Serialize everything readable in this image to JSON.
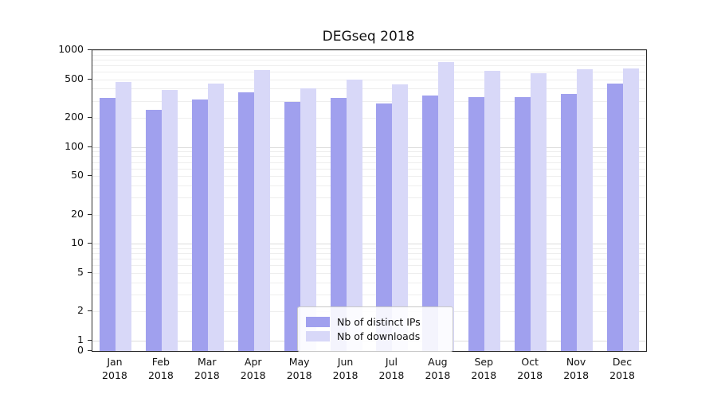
{
  "title": "DEGseq 2018",
  "chart_data": {
    "type": "bar",
    "scale": "symlog",
    "title": "DEGseq 2018",
    "xlabel": "",
    "ylabel": "",
    "year": "2018",
    "categories": [
      "Jan",
      "Feb",
      "Mar",
      "Apr",
      "May",
      "Jun",
      "Jul",
      "Aug",
      "Sep",
      "Oct",
      "Nov",
      "Dec"
    ],
    "series": [
      {
        "name": "Nb of distinct IPs",
        "color": "#a0a0ee",
        "values": [
          320,
          240,
          310,
          370,
          290,
          320,
          280,
          340,
          330,
          330,
          350,
          450
        ]
      },
      {
        "name": "Nb of downloads",
        "color": "#d8d8f8",
        "values": [
          470,
          390,
          450,
          620,
          400,
          500,
          440,
          750,
          610,
          580,
          630,
          650
        ]
      }
    ],
    "yticks": [
      0,
      1,
      2,
      5,
      10,
      20,
      50,
      100,
      200,
      500,
      1000
    ],
    "ylim": [
      0,
      1000
    ],
    "grid": true,
    "legend_position": "bottom-center"
  },
  "colors": {
    "grid_major": "#dddddd",
    "grid_minor": "#eeeeee",
    "axis": "#2b2b2b"
  }
}
